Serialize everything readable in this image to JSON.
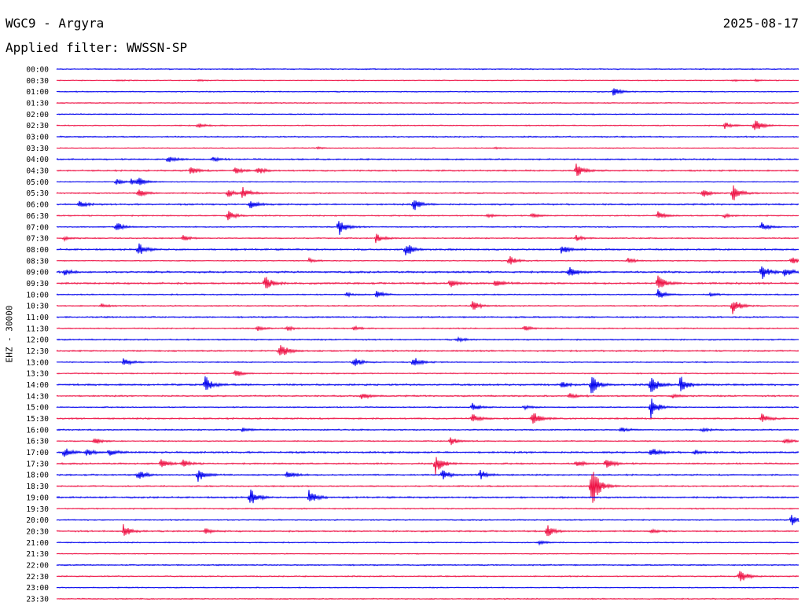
{
  "header": {
    "station": "WGC9 - Argyra",
    "date": "2025-08-17",
    "filter": "Applied filter: WWSSN-SP",
    "channel": "EHZ - 30000"
  },
  "colors": {
    "even_trace": "#0000ee",
    "odd_trace": "#ee1144"
  },
  "chart_data": {
    "type": "line",
    "title": "WGC9 - Argyra",
    "subtitle": "Applied filter: WWSSN-SP",
    "ylabel": "EHZ - 30000",
    "xlabel": "",
    "row_minutes": 30,
    "x_range_minutes": [
      0,
      30
    ],
    "grid": false,
    "legend": "none",
    "rows": [
      {
        "label": "00:00",
        "events": [],
        "noise": 0.8
      },
      {
        "label": "00:30",
        "events": [
          [
            0.08,
            0.08
          ],
          [
            0.19,
            0.08
          ],
          [
            0.91,
            0.09
          ],
          [
            0.94,
            0.08
          ]
        ],
        "noise": 0.6
      },
      {
        "label": "01:00",
        "events": [
          [
            0.75,
            0.45
          ]
        ],
        "noise": 0.7
      },
      {
        "label": "01:30",
        "events": [],
        "noise": 0.7
      },
      {
        "label": "02:00",
        "events": [],
        "noise": 0.7
      },
      {
        "label": "02:30",
        "events": [
          [
            0.19,
            0.25
          ],
          [
            0.9,
            0.35
          ],
          [
            0.94,
            0.8
          ]
        ],
        "noise": 0.7
      },
      {
        "label": "03:00",
        "events": [],
        "noise": 0.9
      },
      {
        "label": "03:30",
        "events": [
          [
            0.35,
            0.1
          ],
          [
            0.59,
            0.1
          ]
        ],
        "noise": 0.6
      },
      {
        "label": "04:00",
        "events": [
          [
            0.15,
            0.35
          ],
          [
            0.21,
            0.25
          ]
        ],
        "noise": 1.0
      },
      {
        "label": "04:30",
        "events": [
          [
            0.18,
            0.45
          ],
          [
            0.24,
            0.35
          ],
          [
            0.27,
            0.4
          ],
          [
            0.7,
            0.75
          ]
        ],
        "noise": 1.0
      },
      {
        "label": "05:00",
        "events": [
          [
            0.08,
            0.3
          ],
          [
            0.1,
            0.3
          ],
          [
            0.11,
            0.4
          ]
        ],
        "noise": 0.6
      },
      {
        "label": "05:30",
        "events": [
          [
            0.11,
            0.45
          ],
          [
            0.23,
            0.45
          ],
          [
            0.25,
            0.6
          ],
          [
            0.87,
            0.5
          ],
          [
            0.91,
            1.0
          ]
        ],
        "noise": 0.9
      },
      {
        "label": "06:00",
        "events": [
          [
            0.03,
            0.4
          ],
          [
            0.26,
            0.5
          ],
          [
            0.48,
            0.75
          ]
        ],
        "noise": 1.0
      },
      {
        "label": "06:30",
        "events": [
          [
            0.23,
            0.6
          ],
          [
            0.58,
            0.2
          ],
          [
            0.64,
            0.25
          ],
          [
            0.81,
            0.4
          ],
          [
            0.9,
            0.2
          ]
        ],
        "noise": 0.8
      },
      {
        "label": "07:00",
        "events": [
          [
            0.08,
            0.5
          ],
          [
            0.38,
            0.9
          ],
          [
            0.95,
            0.45
          ]
        ],
        "noise": 0.8
      },
      {
        "label": "07:30",
        "events": [
          [
            0.01,
            0.2
          ],
          [
            0.17,
            0.3
          ],
          [
            0.43,
            0.45
          ],
          [
            0.7,
            0.3
          ]
        ],
        "noise": 0.8
      },
      {
        "label": "08:00",
        "events": [
          [
            0.11,
            0.7
          ],
          [
            0.47,
            0.8
          ],
          [
            0.68,
            0.5
          ]
        ],
        "noise": 1.1
      },
      {
        "label": "08:30",
        "events": [
          [
            0.34,
            0.2
          ],
          [
            0.61,
            0.55
          ],
          [
            0.77,
            0.3
          ],
          [
            0.99,
            0.4
          ]
        ],
        "noise": 0.7
      },
      {
        "label": "09:00",
        "events": [
          [
            0.01,
            0.3
          ],
          [
            0.69,
            0.6
          ],
          [
            0.95,
            0.9
          ],
          [
            0.98,
            0.5
          ]
        ],
        "noise": 1.2
      },
      {
        "label": "09:30",
        "events": [
          [
            0.28,
            0.9
          ],
          [
            0.53,
            0.5
          ],
          [
            0.59,
            0.45
          ],
          [
            0.81,
            0.9
          ]
        ],
        "noise": 1.2
      },
      {
        "label": "10:00",
        "events": [
          [
            0.39,
            0.2
          ],
          [
            0.43,
            0.45
          ],
          [
            0.81,
            0.5
          ],
          [
            0.88,
            0.2
          ]
        ],
        "noise": 0.8
      },
      {
        "label": "10:30",
        "events": [
          [
            0.06,
            0.2
          ],
          [
            0.56,
            0.55
          ],
          [
            0.91,
            1.0
          ]
        ],
        "noise": 0.8
      },
      {
        "label": "11:00",
        "events": [],
        "noise": 1.0
      },
      {
        "label": "11:30",
        "events": [
          [
            0.27,
            0.25
          ],
          [
            0.31,
            0.25
          ],
          [
            0.4,
            0.2
          ],
          [
            0.63,
            0.3
          ]
        ],
        "noise": 0.8
      },
      {
        "label": "12:00",
        "events": [
          [
            0.54,
            0.2
          ]
        ],
        "noise": 0.9
      },
      {
        "label": "12:30",
        "events": [
          [
            0.3,
            1.0
          ]
        ],
        "noise": 1.0
      },
      {
        "label": "13:00",
        "events": [
          [
            0.09,
            0.5
          ],
          [
            0.4,
            0.55
          ],
          [
            0.48,
            0.65
          ]
        ],
        "noise": 0.8
      },
      {
        "label": "13:30",
        "events": [
          [
            0.24,
            0.4
          ]
        ],
        "noise": 0.8
      },
      {
        "label": "14:00",
        "events": [
          [
            0.2,
            0.9
          ],
          [
            0.68,
            0.35
          ],
          [
            0.72,
            1.0
          ],
          [
            0.8,
            1.1
          ],
          [
            0.84,
            0.9
          ]
        ],
        "noise": 1.2
      },
      {
        "label": "14:30",
        "events": [
          [
            0.41,
            0.4
          ],
          [
            0.69,
            0.3
          ],
          [
            0.83,
            0.2
          ]
        ],
        "noise": 1.0
      },
      {
        "label": "15:00",
        "events": [
          [
            0.56,
            0.4
          ],
          [
            0.63,
            0.2
          ],
          [
            0.8,
            1.2
          ]
        ],
        "noise": 0.8
      },
      {
        "label": "15:30",
        "events": [
          [
            0.56,
            0.5
          ],
          [
            0.64,
            0.9
          ],
          [
            0.95,
            0.5
          ]
        ],
        "noise": 1.0
      },
      {
        "label": "16:00",
        "events": [
          [
            0.25,
            0.2
          ],
          [
            0.76,
            0.3
          ],
          [
            0.87,
            0.2
          ]
        ],
        "noise": 0.9
      },
      {
        "label": "16:30",
        "events": [
          [
            0.05,
            0.4
          ],
          [
            0.53,
            0.5
          ],
          [
            0.98,
            0.3
          ]
        ],
        "noise": 0.8
      },
      {
        "label": "17:00",
        "events": [
          [
            0.01,
            0.5
          ],
          [
            0.04,
            0.4
          ],
          [
            0.07,
            0.4
          ],
          [
            0.8,
            0.5
          ],
          [
            0.86,
            0.2
          ]
        ],
        "noise": 1.2
      },
      {
        "label": "17:30",
        "events": [
          [
            0.14,
            0.5
          ],
          [
            0.17,
            0.4
          ],
          [
            0.51,
            1.1
          ],
          [
            0.7,
            0.35
          ],
          [
            0.74,
            0.6
          ]
        ],
        "noise": 1.0
      },
      {
        "label": "18:00",
        "events": [
          [
            0.11,
            0.5
          ],
          [
            0.19,
            0.8
          ],
          [
            0.31,
            0.5
          ],
          [
            0.52,
            0.5
          ],
          [
            0.57,
            0.5
          ]
        ],
        "noise": 1.0
      },
      {
        "label": "18:30",
        "events": [
          [
            0.72,
            2.6
          ]
        ],
        "noise": 0.9
      },
      {
        "label": "19:00",
        "events": [
          [
            0.26,
            1.0
          ],
          [
            0.34,
            0.8
          ]
        ],
        "noise": 1.1
      },
      {
        "label": "19:30",
        "events": [],
        "noise": 0.8
      },
      {
        "label": "20:00",
        "events": [
          [
            0.99,
            0.6
          ]
        ],
        "noise": 0.8
      },
      {
        "label": "20:30",
        "events": [
          [
            0.09,
            0.7
          ],
          [
            0.2,
            0.3
          ],
          [
            0.66,
            0.7
          ],
          [
            0.8,
            0.2
          ]
        ],
        "noise": 1.0
      },
      {
        "label": "21:00",
        "events": [
          [
            0.65,
            0.2
          ]
        ],
        "noise": 0.7
      },
      {
        "label": "21:30",
        "events": [],
        "noise": 0.6
      },
      {
        "label": "22:00",
        "events": [],
        "noise": 0.9
      },
      {
        "label": "22:30",
        "events": [
          [
            0.92,
            0.8
          ]
        ],
        "noise": 0.8
      },
      {
        "label": "23:00",
        "events": [],
        "noise": 0.7
      },
      {
        "label": "23:30",
        "events": [],
        "noise": 0.8
      }
    ]
  }
}
